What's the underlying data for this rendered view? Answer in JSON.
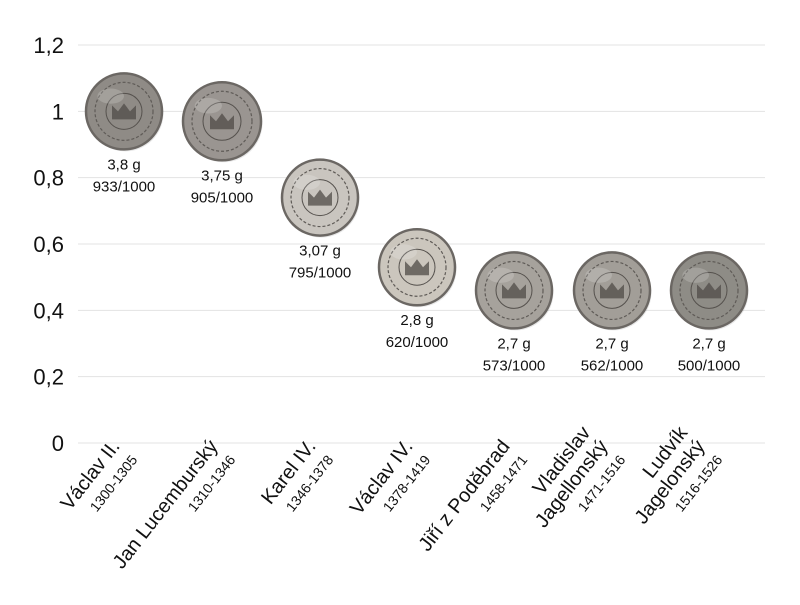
{
  "chart_data": {
    "type": "scatter",
    "title": "",
    "xlabel": "",
    "ylabel": "",
    "ylim": [
      0,
      1.2
    ],
    "yticks": [
      "0",
      "0,2",
      "0,4",
      "0,6",
      "0,8",
      "1",
      "1,2"
    ],
    "grid": true,
    "categories": [
      {
        "name": "Václav II.",
        "name_lines": [
          "Václav II."
        ],
        "years": "1300-1305"
      },
      {
        "name": "Jan Lucemburský",
        "name_lines": [
          "Jan Lucemburský"
        ],
        "years": "1310-1346"
      },
      {
        "name": "Karel IV.",
        "name_lines": [
          "Karel IV."
        ],
        "years": "1346-1378"
      },
      {
        "name": "Václav IV.",
        "name_lines": [
          "Václav IV."
        ],
        "years": "1378-1419"
      },
      {
        "name": "Jiří z Poděbrad",
        "name_lines": [
          "Jiří z Poděbrad"
        ],
        "years": "1458-1471"
      },
      {
        "name": "Vladislav Jagellonský",
        "name_lines": [
          "Vladislav",
          "Jagellonský"
        ],
        "years": "1471-1516"
      },
      {
        "name": "Ludvík Jagelonský",
        "name_lines": [
          "Ludvík",
          "Jagelonský"
        ],
        "years": "1516-1526"
      }
    ],
    "points": [
      {
        "value": 1.0,
        "weight": "3,8 g",
        "fineness": "933/1000",
        "coin_color": "#8f8b86"
      },
      {
        "value": 0.97,
        "weight": "3,75 g",
        "fineness": "905/1000",
        "coin_color": "#9a9591"
      },
      {
        "value": 0.74,
        "weight": "3,07 g",
        "fineness": "795/1000",
        "coin_color": "#c9c5bf"
      },
      {
        "value": 0.53,
        "weight": "2,8 g",
        "fineness": "620/1000",
        "coin_color": "#cbc6bd"
      },
      {
        "value": 0.46,
        "weight": "2,7 g",
        "fineness": "573/1000",
        "coin_color": "#a6a29c"
      },
      {
        "value": 0.46,
        "weight": "2,7 g",
        "fineness": "562/1000",
        "coin_color": "#a29e98"
      },
      {
        "value": 0.46,
        "weight": "2,7 g",
        "fineness": "500/1000",
        "coin_color": "#8e8c86"
      }
    ]
  }
}
